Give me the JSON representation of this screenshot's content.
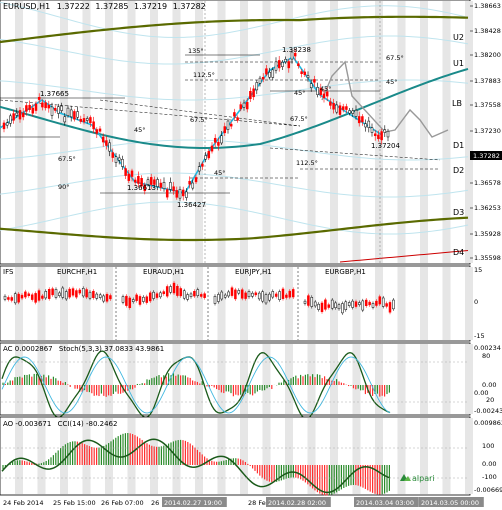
{
  "main": {
    "header": {
      "symbol": "EURUSD,H1",
      "open": "1.37222",
      "high": "1.37285",
      "low": "1.37219",
      "close": "1.37282"
    },
    "price_axis": [
      "1.38663",
      "1.38428",
      "1.38200",
      "1.37883",
      "1.37558",
      "1.37230",
      "1.36903",
      "1.36578",
      "1.36253",
      "1.35928",
      "1.35598"
    ],
    "current_price": "1.37282",
    "level_labels": [
      "U2",
      "U1",
      "LB",
      "D1",
      "D2",
      "D3",
      "D4"
    ],
    "annotations": {
      "high_1": "1.37665",
      "low_1": "1.36613",
      "low_2": "1.36427",
      "high_2": "1.38238",
      "last": "1.37204",
      "angles": [
        "135°",
        "112.5°",
        "67.5°",
        "45°",
        "45°",
        "67.5°",
        "67.5°",
        "45°",
        "45°",
        "112.5°",
        "67.5°",
        "90°",
        "45°"
      ]
    }
  },
  "subcharts": {
    "label": "IFS",
    "pairs": [
      "EURCHF,H1",
      "EURAUD,H1",
      "EURJPY,H1",
      "EURGBP,H1"
    ],
    "axis": [
      "15",
      "0",
      "-15"
    ]
  },
  "ac": {
    "header_ac": "AC 0.0002867",
    "header_stoch": "Stoch(5,3,3) 37.0833 43.9861",
    "axis": [
      "0.00234",
      "80",
      "0.00",
      "20",
      "0.00",
      "-0.00243"
    ]
  },
  "ao": {
    "header_ao": "AO -0.003671",
    "header_cci": "CCI(14) -80.2462",
    "axis": [
      "0.009863",
      "100",
      "0.00",
      "-100",
      "-0.006698"
    ],
    "brand": "alpari"
  },
  "time_axis": [
    "24 Feb 2014",
    "25 Feb 15:00",
    "26 Feb 07:00",
    "26",
    "2014.02.27 19:00",
    "28 Fe",
    "2014.02.28 02:00",
    "2014.03.04 03:00",
    "2014.03.05 00:00"
  ],
  "colors": {
    "candle_bull": "#000000",
    "candle_bear": "#ff0000",
    "cyan": "#20b8e0",
    "teal": "#1a8a8a",
    "olive": "#5a6a00",
    "band": "#c8e8f0"
  }
}
